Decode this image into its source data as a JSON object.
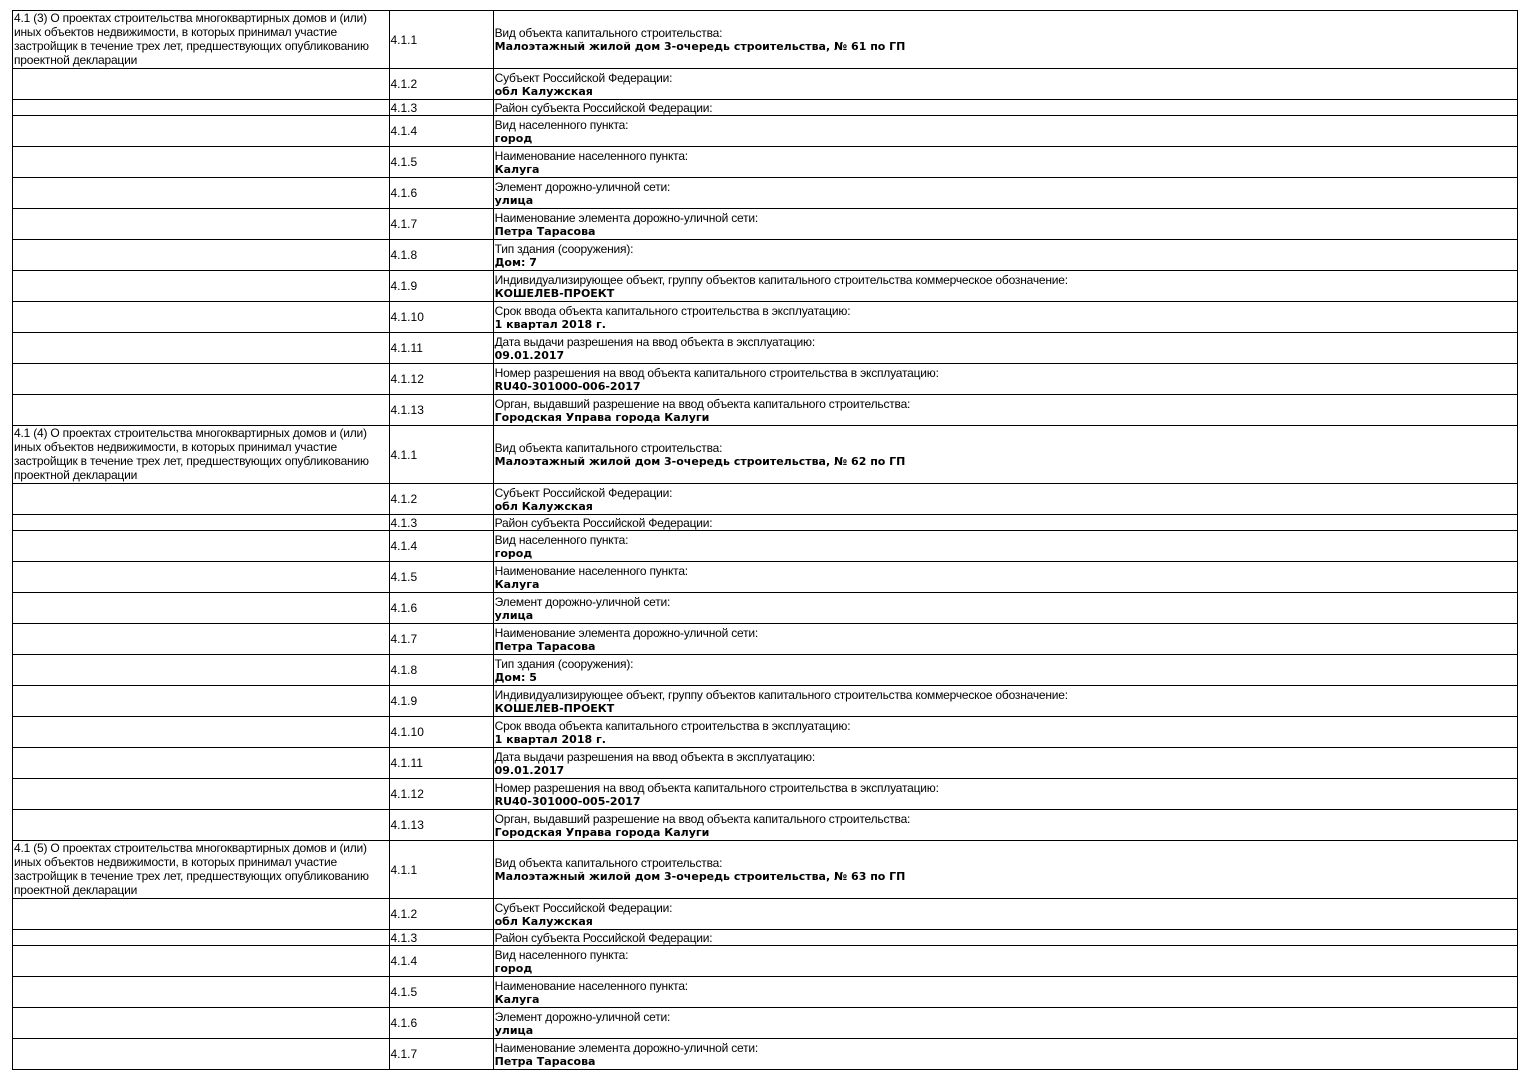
{
  "groups": [
    {
      "title": "4.1 (3) О проектах строительства многоквартирных домов и (или) иных объектов недвижимости, в которых принимал участие застройщик в течение трех лет, предшествующих опубликованию проектной декларации",
      "rows": [
        {
          "num": "4.1.1",
          "label": "Вид объекта капитального строительства:",
          "value": "Малоэтажный жилой дом 3-очередь строительства, № 61 по ГП"
        },
        {
          "num": "4.1.2",
          "label": "Субъект Российской Федерации:",
          "value": "обл Калужская"
        },
        {
          "num": "4.1.3",
          "label": "Район субъекта Российской Федерации:",
          "value": ""
        },
        {
          "num": "4.1.4",
          "label": "Вид населенного пункта:",
          "value": "город"
        },
        {
          "num": "4.1.5",
          "label": "Наименование населенного пункта:",
          "value": "Калуга"
        },
        {
          "num": "4.1.6",
          "label": "Элемент дорожно-уличной сети:",
          "value": "улица"
        },
        {
          "num": "4.1.7",
          "label": "Наименование элемента дорожно-уличной сети:",
          "value": "Петра Тарасова"
        },
        {
          "num": "4.1.8",
          "label": "Тип здания (сооружения):",
          "value": "Дом: 7"
        },
        {
          "num": "4.1.9",
          "label": "Индивидуализирующее объект, группу объектов капитального строительства коммерческое обозначение:",
          "value": "КОШЕЛЕВ-ПРОЕКТ"
        },
        {
          "num": "4.1.10",
          "label": "Срок ввода объекта капитального строительства в эксплуатацию:",
          "value": "1 квартал 2018 г."
        },
        {
          "num": "4.1.11",
          "label": "Дата выдачи разрешения на ввод объекта в эксплуатацию:",
          "value": "09.01.2017"
        },
        {
          "num": "4.1.12",
          "label": "Номер разрешения на ввод объекта капитального строительства в эксплуатацию:",
          "value": "RU40-301000-006-2017"
        },
        {
          "num": "4.1.13",
          "label": "Орган, выдавший разрешение на ввод объекта капитального строительства:",
          "value": "Городская Управа города Калуги"
        }
      ]
    },
    {
      "title": "4.1 (4) О проектах строительства многоквартирных домов и (или) иных объектов недвижимости, в которых принимал участие застройщик в течение трех лет, предшествующих опубликованию проектной декларации",
      "rows": [
        {
          "num": "4.1.1",
          "label": "Вид объекта капитального строительства:",
          "value": "Малоэтажный жилой дом 3-очередь строительства, № 62 по ГП"
        },
        {
          "num": "4.1.2",
          "label": "Субъект Российской Федерации:",
          "value": "обл Калужская"
        },
        {
          "num": "4.1.3",
          "label": "Район субъекта Российской Федерации:",
          "value": ""
        },
        {
          "num": "4.1.4",
          "label": "Вид населенного пункта:",
          "value": "город"
        },
        {
          "num": "4.1.5",
          "label": "Наименование населенного пункта:",
          "value": "Калуга"
        },
        {
          "num": "4.1.6",
          "label": "Элемент дорожно-уличной сети:",
          "value": "улица"
        },
        {
          "num": "4.1.7",
          "label": "Наименование элемента дорожно-уличной сети:",
          "value": "Петра Тарасова"
        },
        {
          "num": "4.1.8",
          "label": "Тип здания (сооружения):",
          "value": "Дом: 5"
        },
        {
          "num": "4.1.9",
          "label": "Индивидуализирующее объект, группу объектов капитального строительства коммерческое обозначение:",
          "value": "КОШЕЛЕВ-ПРОЕКТ"
        },
        {
          "num": "4.1.10",
          "label": "Срок ввода объекта капитального строительства в эксплуатацию:",
          "value": "1 квартал 2018 г."
        },
        {
          "num": "4.1.11",
          "label": "Дата выдачи разрешения на ввод объекта в эксплуатацию:",
          "value": "09.01.2017"
        },
        {
          "num": "4.1.12",
          "label": "Номер разрешения на ввод объекта капитального строительства в эксплуатацию:",
          "value": "RU40-301000-005-2017"
        },
        {
          "num": "4.1.13",
          "label": "Орган, выдавший разрешение на ввод объекта капитального строительства:",
          "value": "Городская Управа города Калуги"
        }
      ]
    },
    {
      "title": "4.1 (5) О проектах строительства многоквартирных домов и (или) иных объектов недвижимости, в которых принимал участие застройщик в течение трех лет, предшествующих опубликованию проектной декларации",
      "rows": [
        {
          "num": "4.1.1",
          "label": "Вид объекта капитального строительства:",
          "value": "Малоэтажный жилой дом 3-очередь строительства, № 63 по ГП"
        },
        {
          "num": "4.1.2",
          "label": "Субъект Российской Федерации:",
          "value": "обл Калужская"
        },
        {
          "num": "4.1.3",
          "label": "Район субъекта Российской Федерации:",
          "value": ""
        },
        {
          "num": "4.1.4",
          "label": "Вид населенного пункта:",
          "value": "город"
        },
        {
          "num": "4.1.5",
          "label": "Наименование населенного пункта:",
          "value": "Калуга"
        },
        {
          "num": "4.1.6",
          "label": "Элемент дорожно-уличной сети:",
          "value": "улица"
        },
        {
          "num": "4.1.7",
          "label": "Наименование элемента дорожно-уличной сети:",
          "value": "Петра Тарасова"
        }
      ]
    }
  ]
}
